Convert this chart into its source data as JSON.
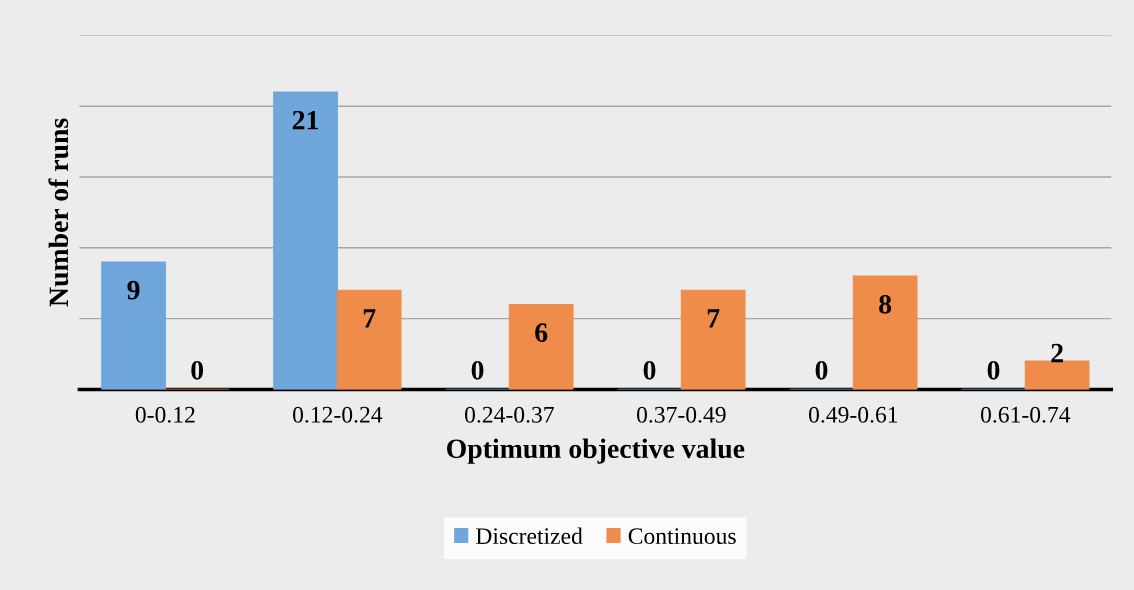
{
  "chart_data": {
    "type": "bar",
    "xlabel": "Optimum objective value",
    "ylabel": "Number of runs",
    "categories": [
      "0-0.12",
      "0.12-0.24",
      "0.24-0.37",
      "0.37-0.49",
      "0.49-0.61",
      "0.61-0.74"
    ],
    "series": [
      {
        "name": "Discretized",
        "color": "#6fa6dc",
        "values": [
          9,
          21,
          0,
          0,
          0,
          0
        ]
      },
      {
        "name": "Continuous",
        "color": "#f08c4a",
        "values": [
          0,
          7,
          6,
          7,
          8,
          2
        ]
      }
    ],
    "ylim": [
      0,
      25
    ],
    "yticks": [
      {
        "value": 0,
        "label": null
      },
      {
        "value": 5,
        "label": null
      },
      {
        "value": 10,
        "label": null
      },
      {
        "value": 15,
        "label": null
      },
      {
        "value": 20,
        "label": null
      },
      {
        "value": 25,
        "label": null
      }
    ],
    "tick_labels": "x",
    "grid": "y",
    "legend": "bottom",
    "data_labels": true
  }
}
